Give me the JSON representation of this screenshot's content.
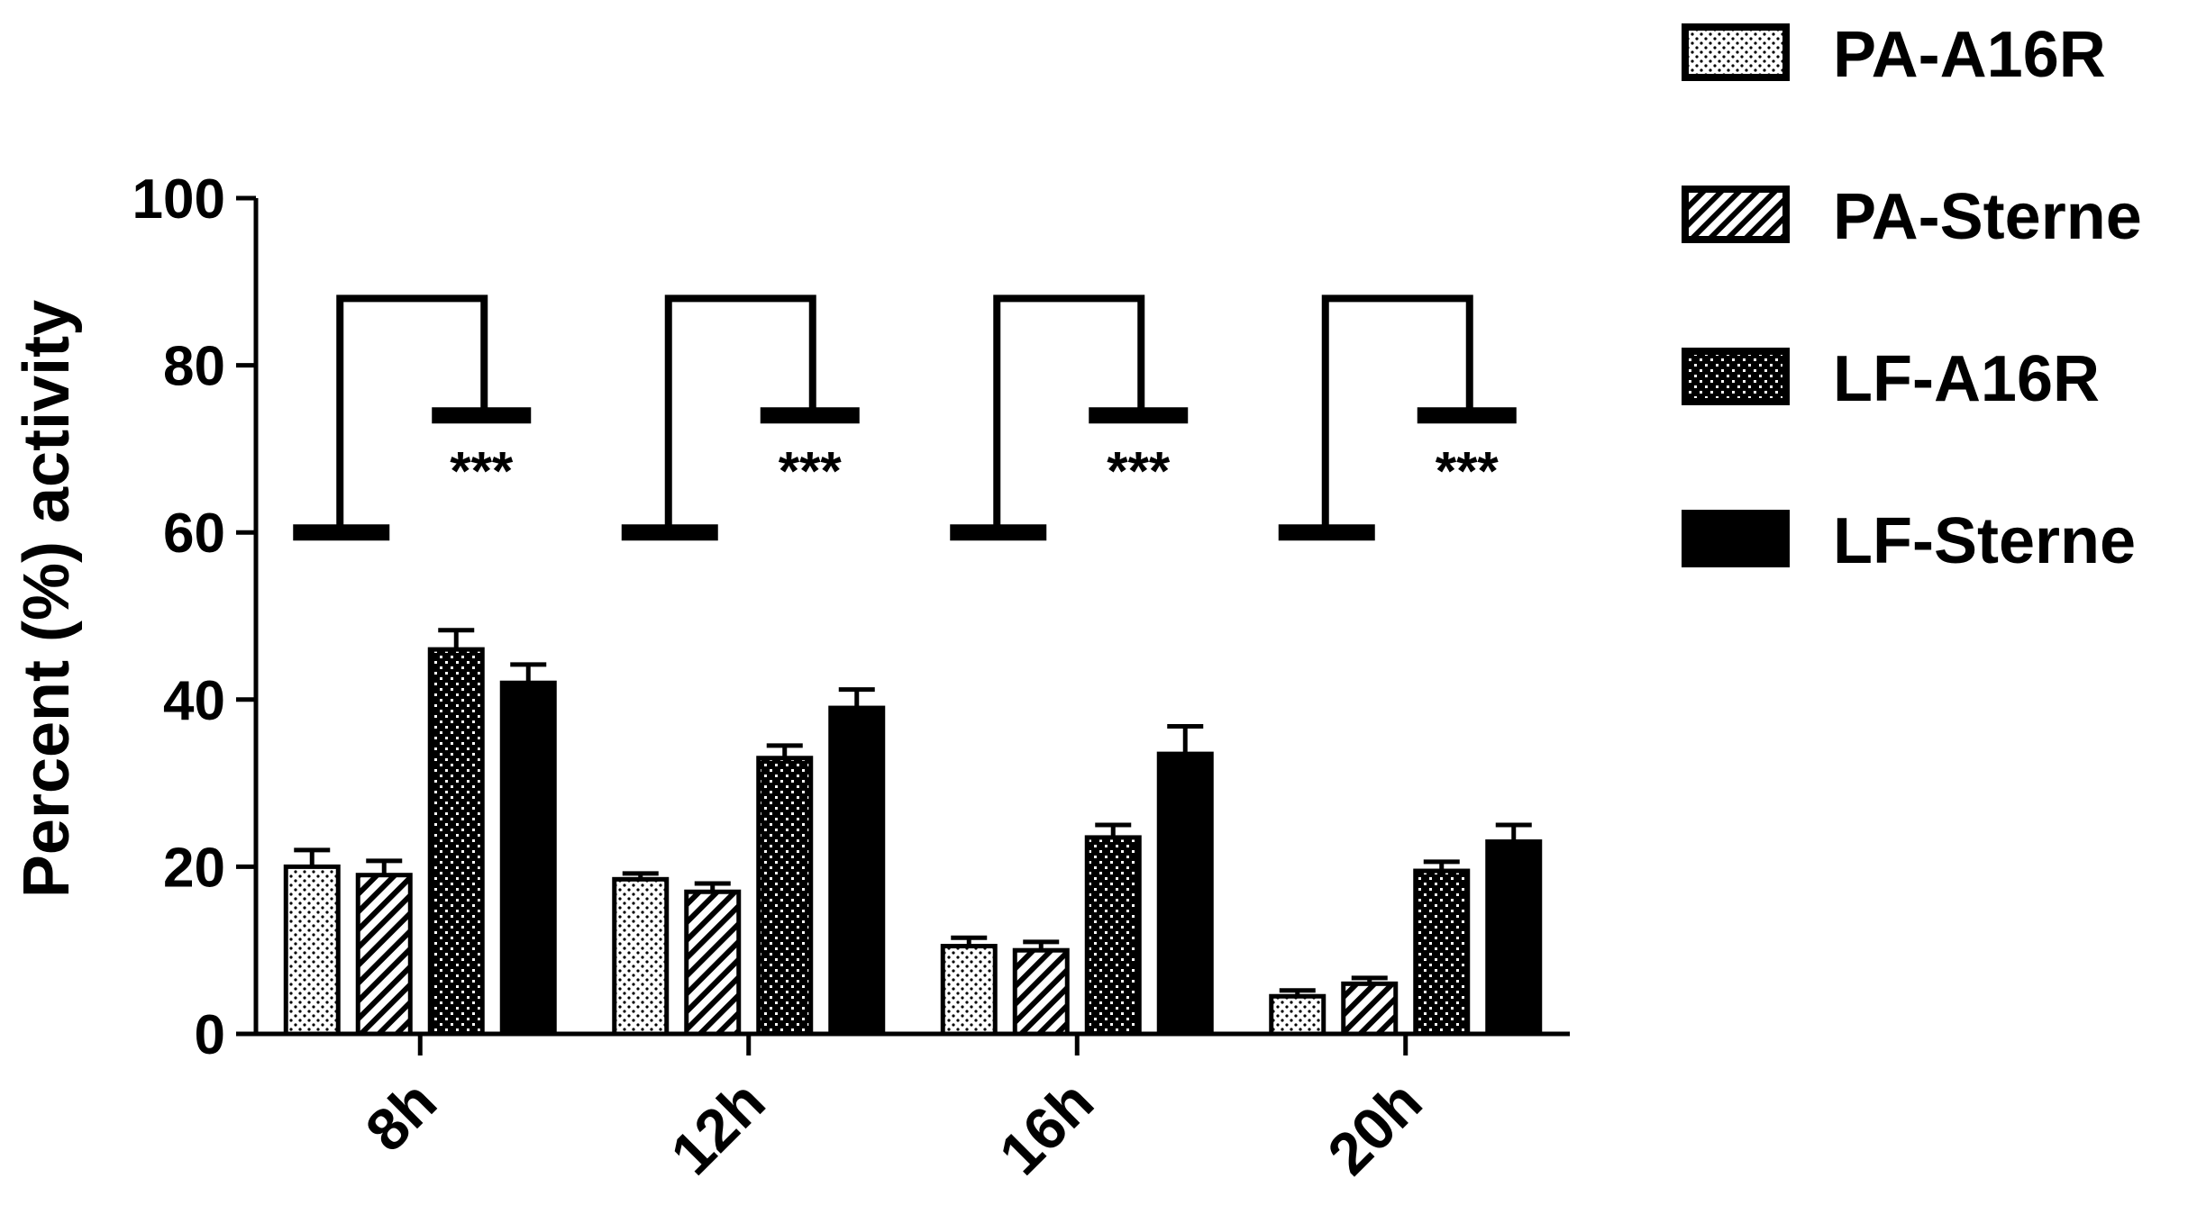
{
  "chart_data": {
    "type": "bar",
    "title": "",
    "xlabel": "",
    "ylabel": "Percent (%) activity",
    "ylim": [
      0,
      100
    ],
    "yticks": [
      "0",
      "20",
      "40",
      "60",
      "80",
      "100"
    ],
    "categories": [
      "8h",
      "12h",
      "16h",
      "20h"
    ],
    "series": [
      {
        "name": "PA-A16R",
        "pattern": "dots",
        "color": "#000000",
        "values": [
          20,
          18.5,
          10.5,
          4.5
        ],
        "errors": [
          2,
          0.7,
          1,
          0.7
        ]
      },
      {
        "name": "PA-Sterne",
        "pattern": "diagonal",
        "color": "#000000",
        "values": [
          19,
          17,
          10,
          6
        ],
        "errors": [
          1.7,
          1,
          1,
          0.7
        ]
      },
      {
        "name": "LF-A16R",
        "pattern": "checker",
        "color": "#000000",
        "values": [
          46,
          33,
          23.5,
          19.5
        ],
        "errors": [
          2.3,
          1.5,
          1.5,
          1.1
        ]
      },
      {
        "name": "LF-Sterne",
        "pattern": "solid",
        "color": "#000000",
        "values": [
          42,
          39,
          33.5,
          23
        ],
        "errors": [
          2.2,
          2.2,
          3.3,
          2
        ]
      }
    ],
    "significance": [
      {
        "category": "8h",
        "label": "***",
        "bracket_high": 88,
        "bracket_left": 60,
        "bracket_right": 74
      },
      {
        "category": "12h",
        "label": "***",
        "bracket_high": 88,
        "bracket_left": 60,
        "bracket_right": 74
      },
      {
        "category": "16h",
        "label": "***",
        "bracket_high": 88,
        "bracket_left": 60,
        "bracket_right": 74
      },
      {
        "category": "20h",
        "label": "***",
        "bracket_high": 88,
        "bracket_left": 60,
        "bracket_right": 74
      }
    ],
    "legend_position": "right",
    "grid": false
  }
}
